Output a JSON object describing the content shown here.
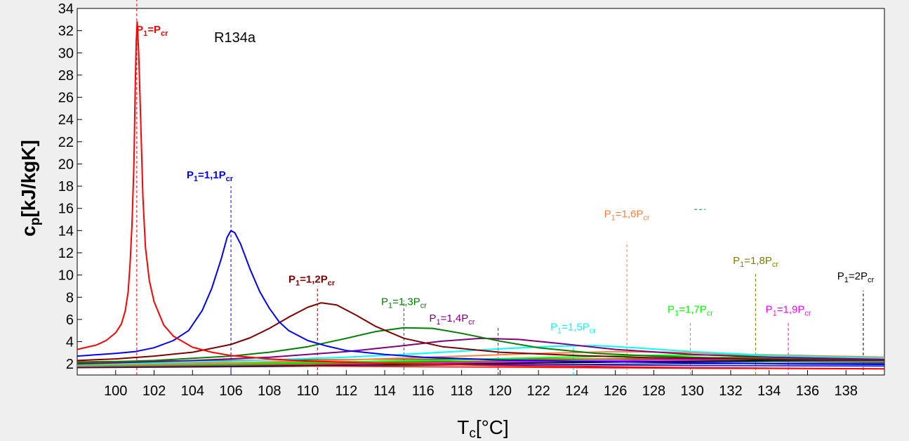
{
  "chart_data": {
    "type": "line",
    "title": "R134a",
    "xlabel": {
      "main": "T",
      "sub": "c",
      "rest": "[°C]"
    },
    "ylabel": {
      "main": "c",
      "sub": "p",
      "rest": "[kJ/kgK]"
    },
    "xlim": [
      98,
      140
    ],
    "ylim": [
      1,
      34
    ],
    "xticks": [
      100,
      102,
      104,
      106,
      108,
      110,
      112,
      114,
      116,
      118,
      120,
      122,
      124,
      126,
      128,
      130,
      132,
      134,
      136,
      138
    ],
    "yticks": [
      2,
      4,
      6,
      8,
      10,
      12,
      14,
      16,
      18,
      20,
      22,
      24,
      26,
      28,
      30,
      32,
      34
    ],
    "grid": false,
    "series": [
      {
        "name": "P1=Pcr",
        "color": "#ff0000",
        "bold": true,
        "peak_x": 101.1,
        "marker_top": 35,
        "label_x": 101.9,
        "label_y": 31.8,
        "label": {
          "a": "P",
          "b": "1",
          "c": "=P",
          "d": "cr"
        },
        "points": [
          [
            98,
            3.3
          ],
          [
            99,
            3.7
          ],
          [
            99.5,
            4.1
          ],
          [
            100,
            4.8
          ],
          [
            100.3,
            5.6
          ],
          [
            100.5,
            6.8
          ],
          [
            100.65,
            8.5
          ],
          [
            100.75,
            11
          ],
          [
            100.85,
            14.5
          ],
          [
            100.95,
            20
          ],
          [
            101.02,
            27
          ],
          [
            101.07,
            31
          ],
          [
            101.12,
            32.8
          ],
          [
            101.2,
            30
          ],
          [
            101.3,
            24
          ],
          [
            101.42,
            17
          ],
          [
            101.55,
            12.5
          ],
          [
            101.75,
            9.5
          ],
          [
            102,
            7.6
          ],
          [
            102.5,
            5.5
          ],
          [
            103,
            4.5
          ],
          [
            104,
            3.5
          ],
          [
            105,
            3.05
          ],
          [
            106,
            2.75
          ],
          [
            108,
            2.45
          ],
          [
            110,
            2.25
          ],
          [
            114,
            2.05
          ],
          [
            120,
            1.85
          ],
          [
            130,
            1.65
          ],
          [
            140,
            1.55
          ]
        ]
      },
      {
        "name": "P1=1,1Pcr",
        "color": "#0000ff",
        "bold": true,
        "peak_x": 106,
        "marker_top": 18,
        "label_x": 104.9,
        "label_y": 18.7,
        "label": {
          "a": "P",
          "b": "1",
          "c": "=1,1P",
          "d": "cr"
        },
        "points": [
          [
            98,
            2.7
          ],
          [
            100,
            2.95
          ],
          [
            101,
            3.1
          ],
          [
            102,
            3.45
          ],
          [
            103,
            4.1
          ],
          [
            103.8,
            5.0
          ],
          [
            104.5,
            6.8
          ],
          [
            105,
            8.8
          ],
          [
            105.5,
            11.5
          ],
          [
            105.8,
            13.4
          ],
          [
            106,
            14.0
          ],
          [
            106.2,
            13.8
          ],
          [
            106.5,
            12.8
          ],
          [
            107,
            10.5
          ],
          [
            107.5,
            8.5
          ],
          [
            108,
            7.0
          ],
          [
            108.5,
            5.8
          ],
          [
            109,
            5.0
          ],
          [
            110,
            4.1
          ],
          [
            111,
            3.6
          ],
          [
            112,
            3.2
          ],
          [
            114,
            2.85
          ],
          [
            116,
            2.6
          ],
          [
            120,
            2.35
          ],
          [
            125,
            2.2
          ],
          [
            130,
            2.1
          ],
          [
            135,
            2.0
          ],
          [
            140,
            1.95
          ]
        ]
      },
      {
        "name": "P1=1,2Pcr",
        "color": "#800000",
        "bold": true,
        "peak_x": 110.5,
        "marker_top": 9,
        "label_x": 110.2,
        "label_y": 9.3,
        "label": {
          "a": "P",
          "b": "1",
          "c": "=1,2P",
          "d": "cr"
        },
        "points": [
          [
            98,
            2.3
          ],
          [
            100,
            2.45
          ],
          [
            102,
            2.7
          ],
          [
            104,
            3.05
          ],
          [
            106,
            3.75
          ],
          [
            107,
            4.35
          ],
          [
            108,
            5.2
          ],
          [
            109,
            6.2
          ],
          [
            110,
            7.1
          ],
          [
            110.7,
            7.5
          ],
          [
            111.5,
            7.3
          ],
          [
            112.5,
            6.4
          ],
          [
            113.5,
            5.4
          ],
          [
            115,
            4.3
          ],
          [
            117,
            3.55
          ],
          [
            120,
            3.05
          ],
          [
            124,
            2.75
          ],
          [
            128,
            2.55
          ],
          [
            132,
            2.45
          ],
          [
            136,
            2.35
          ],
          [
            140,
            2.3
          ]
        ]
      },
      {
        "name": "P1=1,3Pcr",
        "color": "#008000",
        "bold": false,
        "peak_x": 115,
        "marker_top": 7.7,
        "label_x": 115,
        "label_y": 7.3,
        "label": {
          "a": "P",
          "b": "1",
          "c": "=1,3P",
          "d": "cr"
        },
        "points": [
          [
            98,
            2.1
          ],
          [
            102,
            2.3
          ],
          [
            106,
            2.7
          ],
          [
            108,
            3.05
          ],
          [
            110,
            3.55
          ],
          [
            112,
            4.3
          ],
          [
            113.5,
            4.9
          ],
          [
            115,
            5.25
          ],
          [
            116.5,
            5.2
          ],
          [
            118,
            4.75
          ],
          [
            120,
            4.05
          ],
          [
            122,
            3.45
          ],
          [
            125,
            2.95
          ],
          [
            128,
            2.7
          ],
          [
            132,
            2.5
          ],
          [
            136,
            2.4
          ],
          [
            140,
            2.3
          ]
        ]
      },
      {
        "name": "P1=1,4Pcr",
        "color": "#800080",
        "bold": false,
        "peak_x": 119.9,
        "marker_top": 5.3,
        "label_x": 117.5,
        "label_y": 5.8,
        "label": {
          "a": "P",
          "b": "1",
          "c": "=1,4P",
          "d": "cr"
        },
        "points": [
          [
            98,
            2.0
          ],
          [
            104,
            2.3
          ],
          [
            108,
            2.6
          ],
          [
            112,
            3.1
          ],
          [
            115,
            3.65
          ],
          [
            117,
            4.05
          ],
          [
            119,
            4.3
          ],
          [
            121,
            4.2
          ],
          [
            123,
            3.85
          ],
          [
            126,
            3.3
          ],
          [
            130,
            2.85
          ],
          [
            134,
            2.6
          ],
          [
            140,
            2.4
          ]
        ]
      },
      {
        "name": "P1=1,5Pcr",
        "color": "#00ffff",
        "bold": false,
        "peak_x": 123.8,
        "marker_top": 3.7,
        "label_x": 123.8,
        "label_y": 5.0,
        "label": {
          "a": "P",
          "b": "1",
          "c": "=1,5P",
          "d": "cr"
        },
        "points": [
          [
            98,
            1.95
          ],
          [
            106,
            2.25
          ],
          [
            112,
            2.6
          ],
          [
            116,
            2.95
          ],
          [
            120,
            3.35
          ],
          [
            123,
            3.6
          ],
          [
            125,
            3.65
          ],
          [
            127,
            3.45
          ],
          [
            130,
            3.1
          ],
          [
            134,
            2.75
          ],
          [
            140,
            2.5
          ]
        ]
      },
      {
        "name": "P1=1,6Pcr",
        "color": "#ff8040",
        "bold": false,
        "peak_x": 126.6,
        "marker_top": 13,
        "label_x": 126.6,
        "label_y": 15.2,
        "label": {
          "a": "P",
          "b": "1",
          "c": "=1,6P",
          "d": "cr"
        },
        "points": [
          [
            98,
            1.9
          ],
          [
            106,
            2.1
          ],
          [
            112,
            2.35
          ],
          [
            118,
            2.7
          ],
          [
            122,
            2.95
          ],
          [
            126,
            3.1
          ],
          [
            129,
            3.05
          ],
          [
            133,
            2.85
          ],
          [
            140,
            2.6
          ]
        ]
      },
      {
        "name": "P1=1,7Pcr",
        "color": "#00ff00",
        "bold": false,
        "peak_x": 129.9,
        "marker_top": 5.8,
        "label_x": 129.9,
        "label_y": 6.6,
        "label": {
          "a": "P",
          "b": "1",
          "c": "=1,7P",
          "d": "cr"
        },
        "points": [
          [
            98,
            1.85
          ],
          [
            108,
            2.05
          ],
          [
            116,
            2.3
          ],
          [
            122,
            2.55
          ],
          [
            127,
            2.75
          ],
          [
            131,
            2.8
          ],
          [
            135,
            2.7
          ],
          [
            140,
            2.55
          ]
        ]
      },
      {
        "name": "P1=1,8Pcr",
        "color": "#808000",
        "bold": false,
        "peak_x": 133.3,
        "marker_top": 10.2,
        "label_x": 133.3,
        "label_y": 11.0,
        "label": {
          "a": "P",
          "b": "1",
          "c": "=1,8P",
          "d": "cr"
        },
        "points": [
          [
            98,
            1.8
          ],
          [
            110,
            2.0
          ],
          [
            118,
            2.2
          ],
          [
            124,
            2.4
          ],
          [
            130,
            2.55
          ],
          [
            134,
            2.6
          ],
          [
            140,
            2.5
          ]
        ]
      },
      {
        "name": "P1=1,9Pcr",
        "color": "#ff00ff",
        "bold": false,
        "peak_x": 135,
        "marker_top": 5.8,
        "label_x": 135,
        "label_y": 6.6,
        "label": {
          "a": "P",
          "b": "1",
          "c": "=1,9P",
          "d": "cr"
        },
        "points": [
          [
            98,
            1.75
          ],
          [
            110,
            1.95
          ],
          [
            120,
            2.15
          ],
          [
            128,
            2.35
          ],
          [
            134,
            2.45
          ],
          [
            140,
            2.4
          ]
        ]
      },
      {
        "name": "P1=2Pcr",
        "color": "#000000",
        "bold": false,
        "peak_x": 138.9,
        "marker_top": 8.6,
        "label_x": 138.5,
        "label_y": 9.6,
        "label": {
          "a": "P",
          "b": "1",
          "c": "=2P",
          "d": "cr"
        },
        "points": [
          [
            98,
            1.7
          ],
          [
            110,
            1.88
          ],
          [
            120,
            2.05
          ],
          [
            128,
            2.2
          ],
          [
            134,
            2.3
          ],
          [
            140,
            2.3
          ]
        ]
      }
    ],
    "extra_lines": [
      {
        "color": "#008080",
        "points": [
          [
            98,
            2.0
          ],
          [
            105,
            2.1
          ],
          [
            112,
            2.2
          ],
          [
            120,
            2.25
          ],
          [
            130,
            2.2
          ],
          [
            140,
            2.15
          ]
        ]
      },
      {
        "color": "#404040",
        "points": [
          [
            98,
            1.65
          ],
          [
            108,
            1.75
          ],
          [
            118,
            1.9
          ],
          [
            128,
            2.0
          ],
          [
            140,
            2.05
          ]
        ]
      },
      {
        "color": "#8b4513",
        "points": [
          [
            98,
            2.2
          ],
          [
            108,
            2.35
          ],
          [
            118,
            2.45
          ],
          [
            128,
            2.45
          ],
          [
            140,
            2.35
          ]
        ]
      },
      {
        "color": "#ff0000",
        "points": [
          [
            98,
            1.9
          ],
          [
            110,
            1.8
          ],
          [
            120,
            1.7
          ],
          [
            130,
            1.6
          ],
          [
            140,
            1.55
          ]
        ]
      },
      {
        "color": "#0000ff",
        "points": [
          [
            98,
            2.05
          ],
          [
            110,
            2.0
          ],
          [
            120,
            1.95
          ],
          [
            130,
            1.85
          ],
          [
            140,
            1.8
          ]
        ]
      }
    ],
    "stray_mark": {
      "color": "#008080",
      "x": 130.4,
      "y": 15.9
    }
  }
}
